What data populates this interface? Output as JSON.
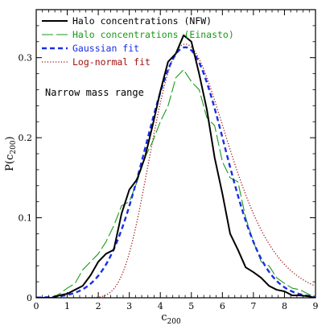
{
  "chart_data": {
    "type": "line",
    "xlabel": "c",
    "xlabel_sub": "200",
    "ylabel": "P(c",
    "ylabel_sub": "200",
    "ylabel_close": ")",
    "xlim": [
      0,
      9
    ],
    "ylim": [
      0,
      0.36
    ],
    "x_ticks": [
      0,
      1,
      2,
      3,
      4,
      5,
      6,
      7,
      8,
      9
    ],
    "x_tick_labels": [
      "0",
      "1",
      "2",
      "3",
      "4",
      "5",
      "6",
      "7",
      "8",
      "9"
    ],
    "y_ticks": [
      0,
      0.1,
      0.2,
      0.3
    ],
    "y_tick_labels": [
      "0",
      "0.1",
      "0.2",
      "0.3"
    ],
    "grid": false,
    "legend_position": "top-left",
    "annotation": "Narrow mass range",
    "series": [
      {
        "name": "Halo concentrations (NFW)",
        "color": "#000000",
        "style": "solid",
        "x": [
          0.0,
          0.25,
          0.5,
          0.75,
          1.0,
          1.25,
          1.5,
          1.75,
          2.0,
          2.25,
          2.5,
          2.75,
          3.0,
          3.25,
          3.5,
          3.75,
          4.0,
          4.25,
          4.5,
          4.75,
          5.0,
          5.25,
          5.5,
          5.75,
          6.0,
          6.25,
          6.5,
          6.75,
          7.0,
          7.25,
          7.5,
          7.75,
          8.0,
          8.25,
          8.5,
          8.75,
          9.0
        ],
        "values": [
          0.0,
          0.0,
          0.0,
          0.003,
          0.005,
          0.01,
          0.015,
          0.028,
          0.045,
          0.055,
          0.06,
          0.105,
          0.135,
          0.148,
          0.175,
          0.215,
          0.258,
          0.295,
          0.305,
          0.328,
          0.32,
          0.28,
          0.235,
          0.175,
          0.13,
          0.08,
          0.06,
          0.038,
          0.032,
          0.025,
          0.015,
          0.01,
          0.008,
          0.003,
          0.003,
          0.002,
          0.0
        ]
      },
      {
        "name": "Halo concentrations (Einasto)",
        "color": "#1a9a1a",
        "style": "longdash",
        "x": [
          0.0,
          0.25,
          0.5,
          0.75,
          1.0,
          1.25,
          1.5,
          1.75,
          2.0,
          2.25,
          2.5,
          2.75,
          3.0,
          3.25,
          3.5,
          3.75,
          4.0,
          4.25,
          4.5,
          4.75,
          5.0,
          5.25,
          5.5,
          5.75,
          6.0,
          6.25,
          6.5,
          6.75,
          7.0,
          7.25,
          7.5,
          7.75,
          8.0,
          8.25,
          8.5,
          8.75,
          9.0
        ],
        "values": [
          0.0,
          0.0,
          0.0,
          0.005,
          0.012,
          0.018,
          0.035,
          0.045,
          0.055,
          0.07,
          0.09,
          0.115,
          0.12,
          0.145,
          0.175,
          0.195,
          0.22,
          0.24,
          0.275,
          0.285,
          0.27,
          0.26,
          0.225,
          0.215,
          0.17,
          0.15,
          0.145,
          0.1,
          0.07,
          0.045,
          0.04,
          0.025,
          0.018,
          0.012,
          0.01,
          0.005,
          0.0
        ]
      },
      {
        "name": "Gaussian fit",
        "color": "#1a2ee6",
        "style": "dash",
        "curve": "gaussian",
        "mean": 4.8,
        "sigma": 1.27,
        "amplitude": 0.313
      },
      {
        "name": "Log-normal fit",
        "color": "#a01010",
        "style": "dotted",
        "curve": "lognormal",
        "mu": 1.57,
        "sigma": 0.253,
        "amplitude": 0.317
      }
    ]
  }
}
